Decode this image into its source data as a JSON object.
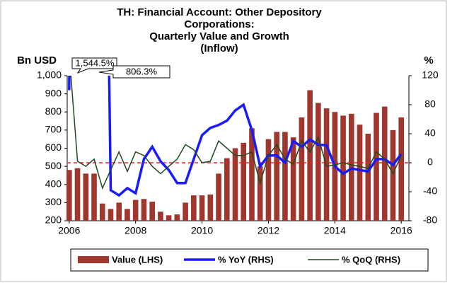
{
  "chart_data": {
    "type": "bar-line",
    "title_lines": [
      "TH: Financial Account: Other Depository",
      "Corporations:",
      "Quarterly Value and Growth",
      "(Inflow)"
    ],
    "ylabel": "Bn USD",
    "y2label": "%",
    "x": [
      2006,
      2006.25,
      2006.5,
      2006.75,
      2007,
      2007.25,
      2007.5,
      2007.75,
      2008,
      2008.25,
      2008.5,
      2008.75,
      2009,
      2009.25,
      2009.5,
      2009.75,
      2010,
      2010.25,
      2010.5,
      2010.75,
      2011,
      2011.25,
      2011.5,
      2011.75,
      2012,
      2012.25,
      2012.5,
      2012.75,
      2013,
      2013.25,
      2013.5,
      2013.75,
      2014,
      2014.25,
      2014.5,
      2014.75,
      2015,
      2015.25,
      2015.5,
      2015.75,
      2016
    ],
    "xlim": [
      2005.94,
      2016.23
    ],
    "xticks": [
      2006,
      2008,
      2010,
      2012,
      2014,
      2016
    ],
    "ylim": [
      200,
      1000
    ],
    "yticks": [
      200,
      300,
      400,
      500,
      600,
      700,
      800,
      900,
      {
        "value": 1000,
        "label": "1,000"
      }
    ],
    "y2lim": [
      -80,
      120
    ],
    "y2ticks": [
      -80,
      -40,
      0,
      40,
      80,
      120
    ],
    "reference_line": {
      "value": 0,
      "axis": "y2",
      "color": "#e8201b"
    },
    "series": [
      {
        "name": "Value (LHS)",
        "type": "bar",
        "color": "#a0372f",
        "values": [
          480,
          490,
          460,
          460,
          295,
          265,
          300,
          265,
          315,
          320,
          305,
          250,
          230,
          235,
          300,
          340,
          340,
          345,
          460,
          545,
          600,
          630,
          710,
          500,
          650,
          690,
          690,
          660,
          770,
          920,
          850,
          820,
          800,
          780,
          790,
          730,
          680,
          795,
          830,
          700,
          770
        ]
      },
      {
        "name": "% YoY (RHS)",
        "type": "line",
        "axis": "y2",
        "color": "#1a1aff",
        "values": [
          100,
          1544.5,
          null,
          null,
          806.3,
          -38,
          -45,
          -35,
          -42,
          5,
          22,
          2,
          -10,
          -28,
          -28,
          5,
          38,
          48,
          52,
          58,
          72,
          80,
          45,
          -5,
          10,
          10,
          0,
          30,
          22,
          32,
          25,
          24,
          -5,
          -15,
          -8,
          -10,
          -12,
          5,
          5,
          -3,
          12
        ],
        "value_labels": [
          null,
          "1,544.5%",
          null,
          null,
          "806.3%",
          null,
          null,
          null,
          null,
          null,
          null,
          null,
          null,
          null,
          null,
          null,
          null,
          null,
          null,
          null,
          null,
          null,
          null,
          null,
          null,
          null,
          null,
          null,
          null,
          null,
          null,
          null,
          null,
          null,
          null,
          null,
          null,
          null,
          null,
          null,
          null
        ]
      },
      {
        "name": "% QoQ (RHS)",
        "type": "line",
        "axis": "y2",
        "color": "#1f4a1f",
        "values": [
          150,
          2,
          -5,
          5,
          -35,
          -10,
          15,
          -12,
          15,
          10,
          -5,
          -15,
          -5,
          5,
          25,
          18,
          0,
          2,
          30,
          20,
          10,
          10,
          15,
          -28,
          10,
          25,
          5,
          -2,
          30,
          15,
          35,
          -5,
          -3,
          0,
          -3,
          -5,
          -8,
          15,
          5,
          -15,
          10
        ]
      }
    ]
  }
}
